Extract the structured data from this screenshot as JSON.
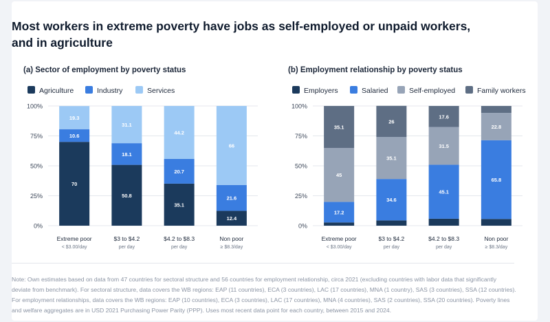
{
  "title": "Most workers in extreme poverty have jobs as self-employed or unpaid workers, and in agriculture",
  "note": "Note: Own estimates based on data from 47 countries for sectoral structure and 56 countries for employment relationship, circa 2021 (excluding countries with labor data that significantly deviate from benchmark). For sectoral structure, data covers the WB regions: EAP (11 countries), ECA (3 countries), LAC (17 countries), MNA (1 country), SAS (3 countries), SSA (12 countries). For employment relationships, data covers the WB regions: EAP (10 countries), ECA (3 countries), LAC (17 countries), MNA (4 countries), SAS (2 countries), SSA (20 countries). Poverty lines and welfare aggregates are in USD 2021 Purchasing Power Parity (PPP). Uses most recent data point for each country, between 2015 and 2024.",
  "chart_data": [
    {
      "type": "bar",
      "stacked": true,
      "title": "(a) Sector of employment by poverty status",
      "categories": [
        "Extreme poor",
        "$3 to $4.2",
        "$4.2 to $8.3",
        "Non poor"
      ],
      "category_sublabels": [
        "< $3.00/day",
        "per day",
        "per day",
        "≥ $8.3/day"
      ],
      "series": [
        {
          "name": "Agriculture",
          "color": "#1b3a5c",
          "values": [
            70,
            50.8,
            35.1,
            12.4
          ]
        },
        {
          "name": "Industry",
          "color": "#3a7de0",
          "values": [
            10.6,
            18.1,
            20.7,
            21.6
          ]
        },
        {
          "name": "Services",
          "color": "#9cc9f5",
          "values": [
            19.3,
            31.1,
            44.2,
            66
          ]
        }
      ],
      "ylim": [
        0,
        100
      ],
      "yticks": [
        "0%",
        "25%",
        "50%",
        "75%",
        "100%"
      ],
      "legend": "top-left",
      "grid": true
    },
    {
      "type": "bar",
      "stacked": true,
      "title": "(b) Employment relationship by poverty status",
      "categories": [
        "Extreme poor",
        "$3 to $4.2",
        "$4.2 to $8.3",
        "Non poor"
      ],
      "category_sublabels": [
        "< $3.00/day",
        "per day",
        "per day",
        "≥ $8.3/day"
      ],
      "series": [
        {
          "name": "Employers",
          "color": "#1b3a5c",
          "values": [
            2.7,
            4.4,
            5.8,
            5.6
          ],
          "show_labels": false
        },
        {
          "name": "Salaried",
          "color": "#3a7de0",
          "values": [
            17.2,
            34.6,
            45.1,
            65.8
          ]
        },
        {
          "name": "Self-employed",
          "color": "#97a4b7",
          "values": [
            45,
            35.1,
            31.5,
            22.8
          ]
        },
        {
          "name": "Family workers",
          "color": "#5e6e84",
          "values": [
            35.1,
            26,
            17.6,
            5.8
          ],
          "label_overrides": [
            null,
            null,
            null,
            ""
          ]
        }
      ],
      "ylim": [
        0,
        100
      ],
      "yticks": [
        "0%",
        "25%",
        "50%",
        "75%",
        "100%"
      ],
      "legend": "top-left",
      "grid": true
    }
  ]
}
